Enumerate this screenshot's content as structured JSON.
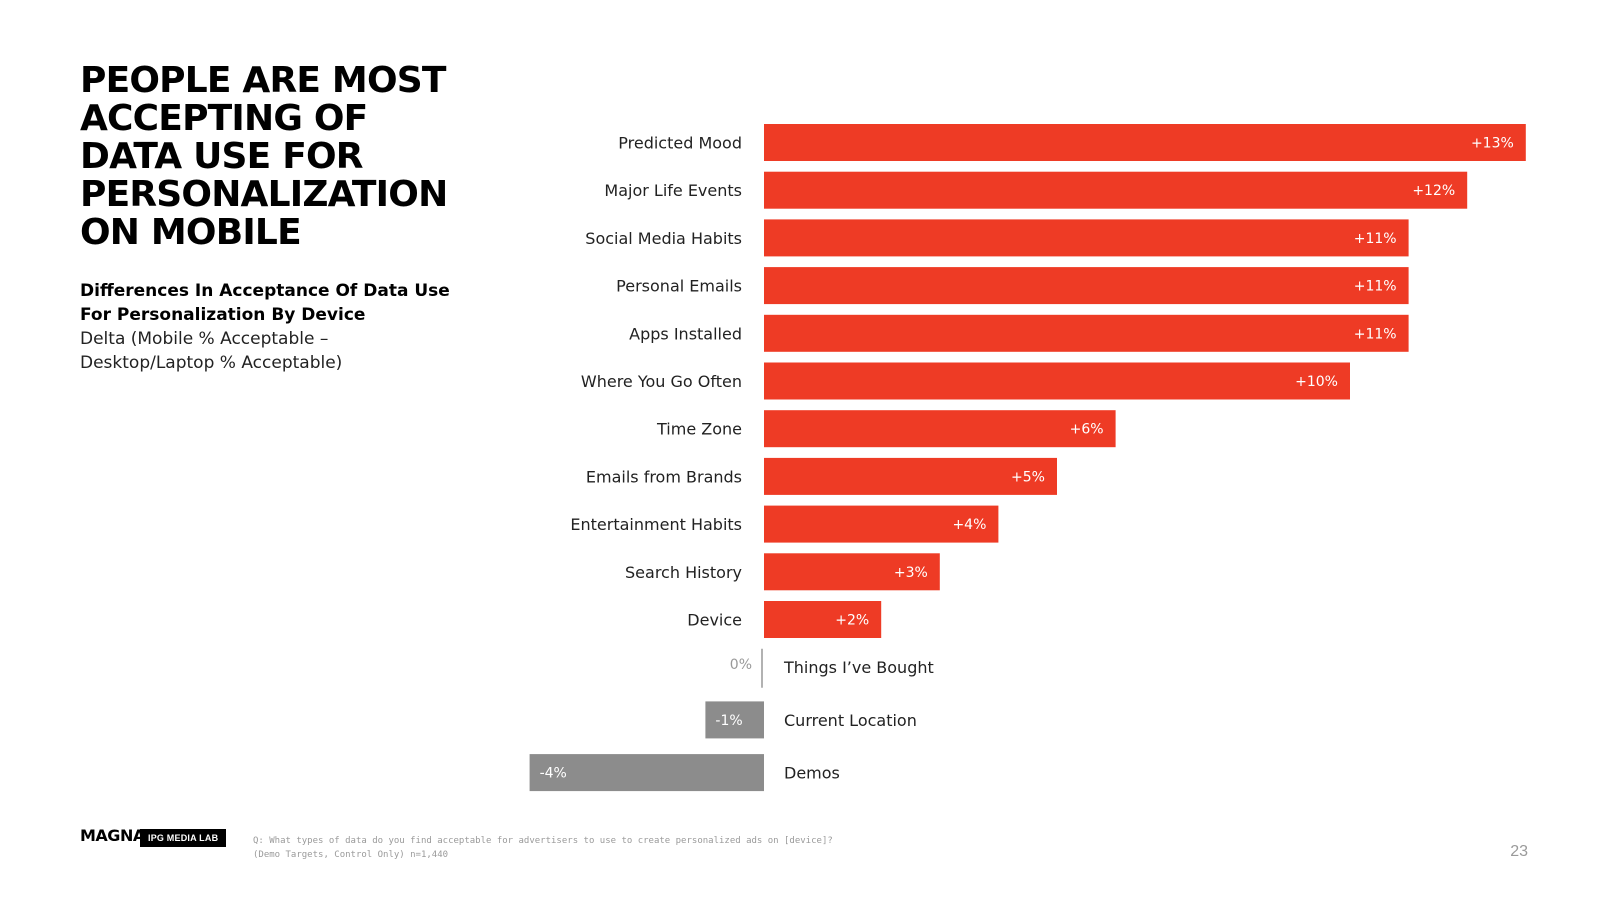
{
  "header": {
    "title": "PEOPLE ARE MOST ACCEPTING OF DATA USE FOR PERSONALIZATION ON MOBILE",
    "subtitle_bold": "Differences In Acceptance Of Data Use For Personalization By Device",
    "subtitle_regular": "Delta (Mobile % Acceptable – Desktop/Laptop % Acceptable)"
  },
  "colors": {
    "positive_bar": "#EE3B25",
    "negative_bar": "#8C8C8C",
    "label_text": "#222222",
    "zero_label": "#999999"
  },
  "chart_data": {
    "type": "bar",
    "orientation": "horizontal",
    "title": "Differences In Acceptance Of Data Use For Personalization By Device",
    "xlabel": "",
    "ylabel": "",
    "xlim": [
      -4,
      13
    ],
    "grid": false,
    "categories": [
      "Predicted Mood",
      "Major Life Events",
      "Social Media Habits",
      "Personal Emails",
      "Apps Installed",
      "Where You Go Often",
      "Time Zone",
      "Emails from Brands",
      "Entertainment Habits",
      "Search History",
      "Device",
      "Things I’ve Bought",
      "Current Location",
      "Demos"
    ],
    "values": [
      13,
      12,
      11,
      11,
      11,
      10,
      6,
      5,
      4,
      3,
      2,
      0,
      -1,
      -4
    ],
    "data_labels": [
      "+13%",
      "+12%",
      "+11%",
      "+11%",
      "+11%",
      "+10%",
      "+6%",
      "+5%",
      "+4%",
      "+3%",
      "+2%",
      "0%",
      "-1%",
      "-4%"
    ]
  },
  "footer": {
    "logo_magna": "MAGNA",
    "logo_ipg": "IPG MEDIA LAB",
    "question_note": "Q: What types of data do you find acceptable for advertisers to use to create personalized ads on [device]?\n(Demo Targets, Control Only) n=1,440",
    "page_number": "23"
  }
}
